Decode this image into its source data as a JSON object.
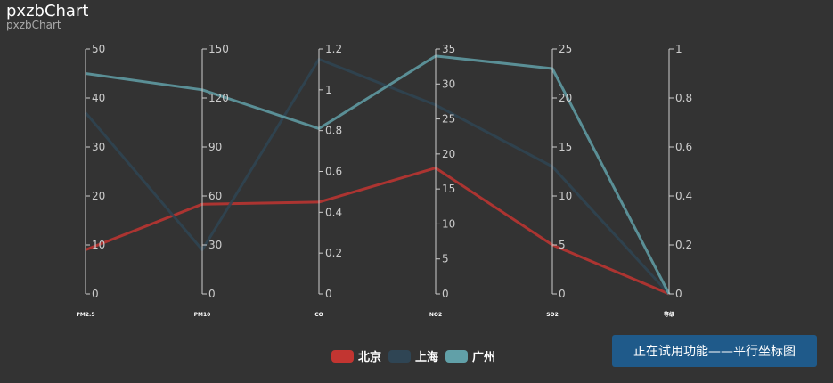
{
  "header": {
    "title": "pxzbChart",
    "subtitle": "pxzbChart"
  },
  "badge": {
    "text": "正在试用功能——平行坐标图"
  },
  "colors": {
    "background": "#333333",
    "axis": "#cccccc",
    "tick_text": "#cccccc"
  },
  "chart_data": {
    "type": "parallel",
    "axes": [
      {
        "name": "PM2.5",
        "min": 0,
        "max": 50,
        "ticks": [
          0,
          10,
          20,
          30,
          40,
          50
        ]
      },
      {
        "name": "PM10",
        "min": 0,
        "max": 150,
        "ticks": [
          0,
          30,
          60,
          90,
          120,
          150
        ]
      },
      {
        "name": "CO",
        "min": 0,
        "max": 1.2,
        "ticks": [
          0,
          0.2,
          0.4,
          0.6,
          0.8,
          1,
          1.2
        ]
      },
      {
        "name": "NO2",
        "min": 0,
        "max": 35,
        "ticks": [
          0,
          5,
          10,
          15,
          20,
          25,
          30,
          35
        ]
      },
      {
        "name": "SO2",
        "min": 0,
        "max": 25,
        "ticks": [
          0,
          5,
          10,
          15,
          20,
          25
        ]
      },
      {
        "name": "等级",
        "min": 0,
        "max": 1,
        "ticks": [
          0,
          0.2,
          0.4,
          0.6,
          0.8,
          1
        ]
      }
    ],
    "series": [
      {
        "name": "北京",
        "color": "#c23531",
        "values": [
          9,
          55,
          0.45,
          18,
          5,
          0
        ]
      },
      {
        "name": "上海",
        "color": "#2f4554",
        "values": [
          37,
          27,
          1.15,
          27,
          13,
          0
        ]
      },
      {
        "name": "广州",
        "color": "#61a0a8",
        "values": [
          45,
          125,
          0.81,
          34,
          23,
          0
        ]
      }
    ],
    "legend_position": "bottom-center"
  }
}
